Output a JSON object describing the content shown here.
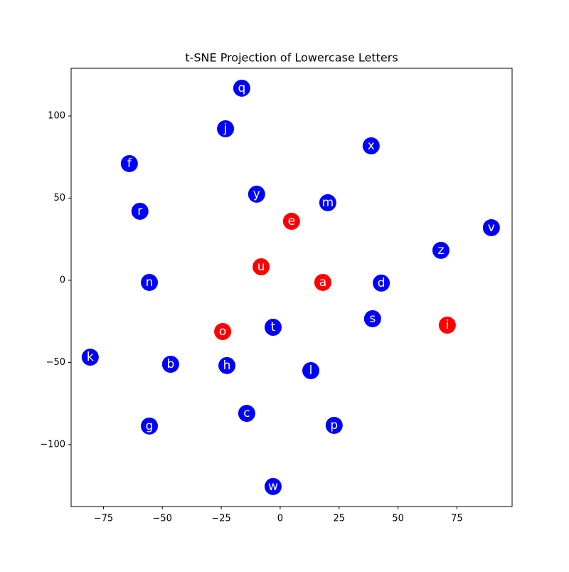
{
  "chart_data": {
    "type": "scatter",
    "title": "t-SNE Projection of Lowercase Letters",
    "labels": [
      "q",
      "j",
      "x",
      "f",
      "y",
      "m",
      "r",
      "e",
      "v",
      "z",
      "u",
      "n",
      "a",
      "d",
      "s",
      "i",
      "t",
      "o",
      "k",
      "b",
      "h",
      "l",
      "c",
      "g",
      "p",
      "w"
    ],
    "x": [
      -16.3,
      -23.2,
      38.6,
      -64,
      -10,
      20.2,
      -59.5,
      4.8,
      89.6,
      68.2,
      -8.1,
      -55.5,
      18.1,
      42.9,
      39.2,
      70.9,
      -3,
      -24.4,
      -80.6,
      -46.5,
      -22.6,
      13,
      -14.2,
      -55.5,
      22.9,
      -3
    ],
    "values": [
      116.9,
      92.2,
      81.8,
      71,
      52.4,
      47.2,
      42,
      35.9,
      32,
      18.2,
      8.2,
      -1.3,
      -1.3,
      -1.7,
      -23.4,
      -27.3,
      -28.6,
      -31.2,
      -46.8,
      -51.1,
      -51.9,
      -55,
      -81,
      -88.7,
      -88.3,
      -125.5
    ],
    "colors": [
      "#0000ff",
      "#0000ff",
      "#0000ff",
      "#0000ff",
      "#0000ff",
      "#0000ff",
      "#0000ff",
      "#ff0000",
      "#0000ff",
      "#0000ff",
      "#ff0000",
      "#0000ff",
      "#ff0000",
      "#0000ff",
      "#0000ff",
      "#ff0000",
      "#0000ff",
      "#ff0000",
      "#0000ff",
      "#0000ff",
      "#0000ff",
      "#0000ff",
      "#0000ff",
      "#0000ff",
      "#0000ff",
      "#0000ff"
    ],
    "xlim": [
      -88.7,
      98.4
    ],
    "ylim": [
      -137.7,
      129
    ],
    "xticks": [
      {
        "value": -75,
        "label": "−75"
      },
      {
        "value": -50,
        "label": "−50"
      },
      {
        "value": -25,
        "label": "−25"
      },
      0,
      25,
      50,
      75
    ],
    "yticks": [
      {
        "value": -100,
        "label": "−100"
      },
      {
        "value": -50,
        "label": "−50"
      },
      0,
      50,
      100
    ]
  }
}
